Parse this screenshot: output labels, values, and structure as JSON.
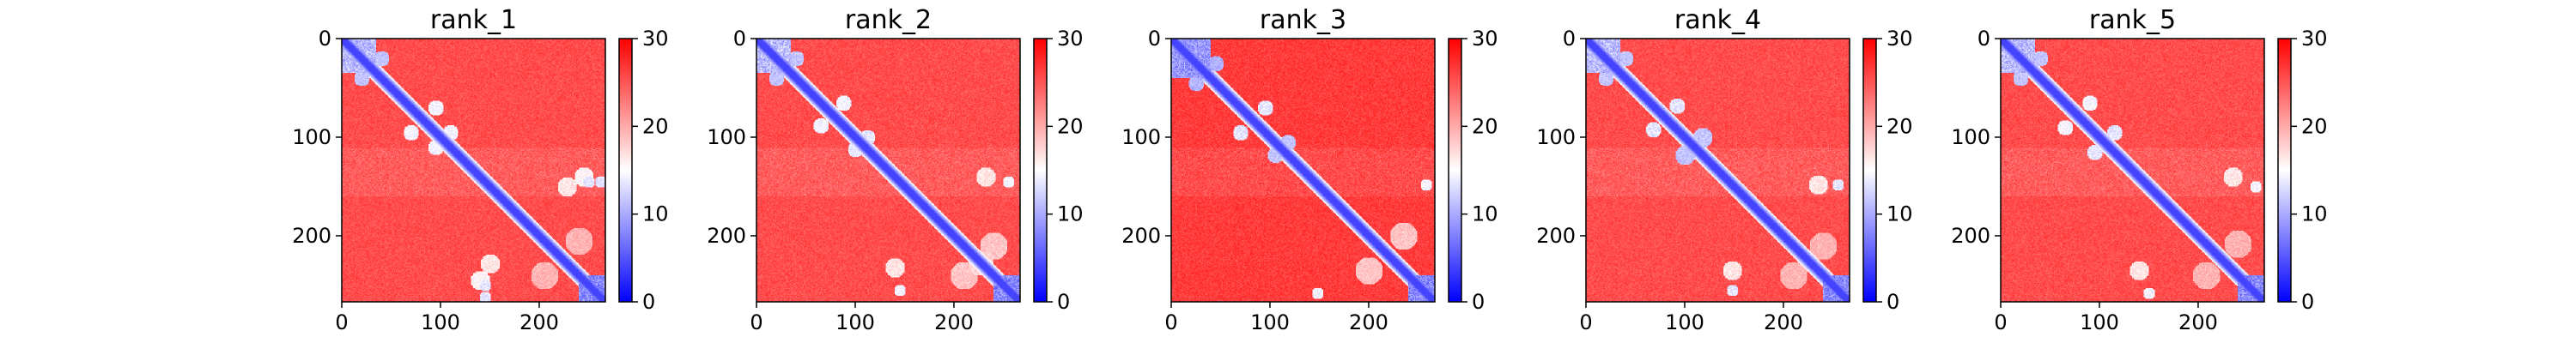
{
  "chart_data": [
    {
      "type": "heatmap",
      "title": "rank_1",
      "matrix_size": 267,
      "x_ticks": [
        0,
        100,
        200
      ],
      "y_ticks": [
        0,
        100,
        200
      ],
      "colorbar": {
        "min": 0,
        "max": 30,
        "ticks": [
          0,
          10,
          20,
          30
        ],
        "colormap": [
          "#0000ff",
          "#ffffff",
          "#ff0000"
        ]
      },
      "diagonal_band_value": 4,
      "background_value": 27,
      "domains": [
        {
          "start": 0,
          "end": 35,
          "value": 8
        },
        {
          "start": 240,
          "end": 267,
          "value": 5
        }
      ],
      "contact_patches": [
        {
          "row": 20,
          "col": 40,
          "size": 8,
          "value": 10
        },
        {
          "row": 70,
          "col": 95,
          "size": 8,
          "value": 13
        },
        {
          "row": 95,
          "col": 110,
          "size": 8,
          "value": 13
        },
        {
          "row": 145,
          "col": 250,
          "size": 6,
          "value": 12
        },
        {
          "row": 145,
          "col": 262,
          "size": 6,
          "value": 12
        },
        {
          "row": 228,
          "col": 150,
          "size": 10,
          "value": 15
        },
        {
          "row": 245,
          "col": 140,
          "size": 10,
          "value": 14
        },
        {
          "row": 240,
          "col": 205,
          "size": 14,
          "value": 18
        }
      ]
    },
    {
      "type": "heatmap",
      "title": "rank_2",
      "matrix_size": 267,
      "x_ticks": [
        0,
        100,
        200
      ],
      "y_ticks": [
        0,
        100,
        200
      ],
      "colorbar": {
        "min": 0,
        "max": 30,
        "ticks": [
          0,
          10,
          20,
          30
        ],
        "colormap": [
          "#0000ff",
          "#ffffff",
          "#ff0000"
        ]
      },
      "diagonal_band_value": 4,
      "background_value": 27,
      "domains": [
        {
          "start": 0,
          "end": 35,
          "value": 8
        },
        {
          "start": 240,
          "end": 267,
          "value": 5
        }
      ],
      "contact_patches": [
        {
          "row": 20,
          "col": 40,
          "size": 8,
          "value": 10
        },
        {
          "row": 65,
          "col": 88,
          "size": 8,
          "value": 13
        },
        {
          "row": 100,
          "col": 112,
          "size": 8,
          "value": 12
        },
        {
          "row": 145,
          "col": 255,
          "size": 6,
          "value": 13
        },
        {
          "row": 232,
          "col": 140,
          "size": 10,
          "value": 15
        },
        {
          "row": 240,
          "col": 210,
          "size": 14,
          "value": 17
        },
        {
          "row": 225,
          "col": 230,
          "size": 10,
          "value": 16
        }
      ]
    },
    {
      "type": "heatmap",
      "title": "rank_3",
      "matrix_size": 267,
      "x_ticks": [
        0,
        100,
        200
      ],
      "y_ticks": [
        0,
        100,
        200
      ],
      "colorbar": {
        "min": 0,
        "max": 30,
        "ticks": [
          0,
          10,
          20,
          30
        ],
        "colormap": [
          "#0000ff",
          "#ffffff",
          "#ff0000"
        ]
      },
      "diagonal_band_value": 4,
      "background_value": 28,
      "domains": [
        {
          "start": 0,
          "end": 40,
          "value": 6
        },
        {
          "start": 240,
          "end": 267,
          "value": 5
        }
      ],
      "contact_patches": [
        {
          "row": 25,
          "col": 45,
          "size": 8,
          "value": 9
        },
        {
          "row": 70,
          "col": 95,
          "size": 8,
          "value": 12
        },
        {
          "row": 105,
          "col": 118,
          "size": 8,
          "value": 10
        },
        {
          "row": 148,
          "col": 258,
          "size": 6,
          "value": 13
        },
        {
          "row": 235,
          "col": 200,
          "size": 14,
          "value": 17
        }
      ]
    },
    {
      "type": "heatmap",
      "title": "rank_4",
      "matrix_size": 267,
      "x_ticks": [
        0,
        100,
        200
      ],
      "y_ticks": [
        0,
        100,
        200
      ],
      "colorbar": {
        "min": 0,
        "max": 30,
        "ticks": [
          0,
          10,
          20,
          30
        ],
        "colormap": [
          "#0000ff",
          "#ffffff",
          "#ff0000"
        ]
      },
      "diagonal_band_value": 4,
      "background_value": 27,
      "domains": [
        {
          "start": 0,
          "end": 35,
          "value": 8
        },
        {
          "start": 240,
          "end": 267,
          "value": 5
        }
      ],
      "contact_patches": [
        {
          "row": 20,
          "col": 40,
          "size": 8,
          "value": 10
        },
        {
          "row": 68,
          "col": 92,
          "size": 8,
          "value": 12
        },
        {
          "row": 100,
          "col": 118,
          "size": 10,
          "value": 10
        },
        {
          "row": 148,
          "col": 255,
          "size": 6,
          "value": 12
        },
        {
          "row": 235,
          "col": 148,
          "size": 10,
          "value": 15
        },
        {
          "row": 240,
          "col": 210,
          "size": 14,
          "value": 18
        }
      ]
    },
    {
      "type": "heatmap",
      "title": "rank_5",
      "matrix_size": 267,
      "x_ticks": [
        0,
        100,
        200
      ],
      "y_ticks": [
        0,
        100,
        200
      ],
      "colorbar": {
        "min": 0,
        "max": 30,
        "ticks": [
          0,
          10,
          20,
          30
        ],
        "colormap": [
          "#0000ff",
          "#ffffff",
          "#ff0000"
        ]
      },
      "diagonal_band_value": 4,
      "background_value": 27,
      "domains": [
        {
          "start": 0,
          "end": 35,
          "value": 8
        },
        {
          "start": 240,
          "end": 267,
          "value": 5
        }
      ],
      "contact_patches": [
        {
          "row": 20,
          "col": 40,
          "size": 8,
          "value": 10
        },
        {
          "row": 65,
          "col": 90,
          "size": 8,
          "value": 13
        },
        {
          "row": 95,
          "col": 115,
          "size": 8,
          "value": 12
        },
        {
          "row": 150,
          "col": 258,
          "size": 6,
          "value": 13
        },
        {
          "row": 235,
          "col": 140,
          "size": 10,
          "value": 15
        },
        {
          "row": 240,
          "col": 208,
          "size": 14,
          "value": 18
        }
      ]
    }
  ]
}
